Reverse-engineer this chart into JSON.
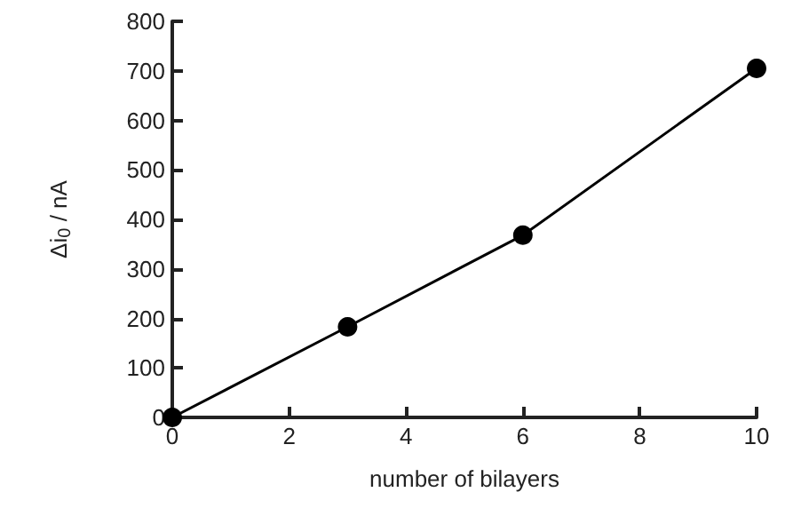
{
  "chart_data": {
    "type": "line",
    "xlabel": "number of bilayers",
    "ylabel": "Δi$_{0}$ / nA",
    "x": [
      0,
      3,
      6,
      10
    ],
    "series": [
      {
        "color": "#000000",
        "values": [
          0,
          183,
          368,
          705
        ]
      }
    ],
    "xlim": [
      0,
      10
    ],
    "xticks": [
      0,
      2,
      4,
      6,
      8,
      10
    ],
    "ylim": [
      0,
      800
    ],
    "yticks": [
      0,
      100,
      200,
      300,
      400,
      500,
      600,
      700,
      800
    ],
    "marker": "circle",
    "line_style": "solid"
  }
}
